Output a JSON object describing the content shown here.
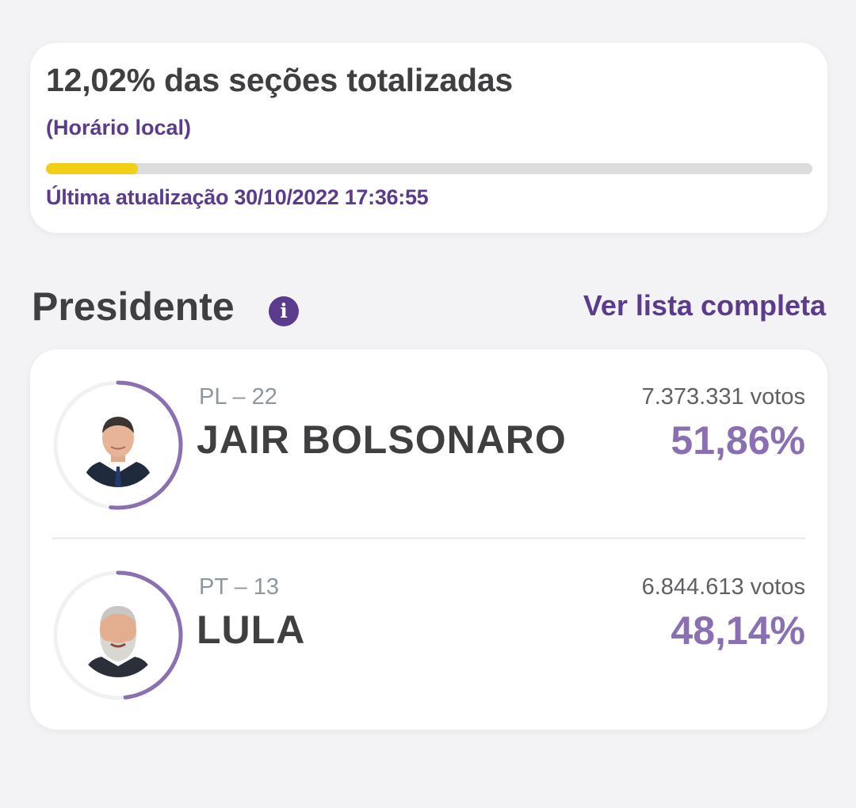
{
  "status": {
    "title": "12,02% das seções totalizadas",
    "subtitle": "(Horário local)",
    "progress_fraction": 0.1202,
    "progress_color": "#f2cf17",
    "last_update": "Última atualização 30/10/2022 17:36:55"
  },
  "section": {
    "title": "Presidente",
    "info_icon": "i",
    "see_all_label": "Ver lista completa"
  },
  "candidates": [
    {
      "party": "PL – 22",
      "name": "JAIR BOLSONARO",
      "votes": "7.373.331 votos",
      "percent": "51,86%",
      "share": 0.5186
    },
    {
      "party": "PT – 13",
      "name": "LULA",
      "votes": "6.844.613 votos",
      "percent": "48,14%",
      "share": 0.4814
    }
  ],
  "colors": {
    "accent": "#5b3b8c",
    "percent": "#8a6fb2",
    "ring": "#8a6fb2"
  }
}
